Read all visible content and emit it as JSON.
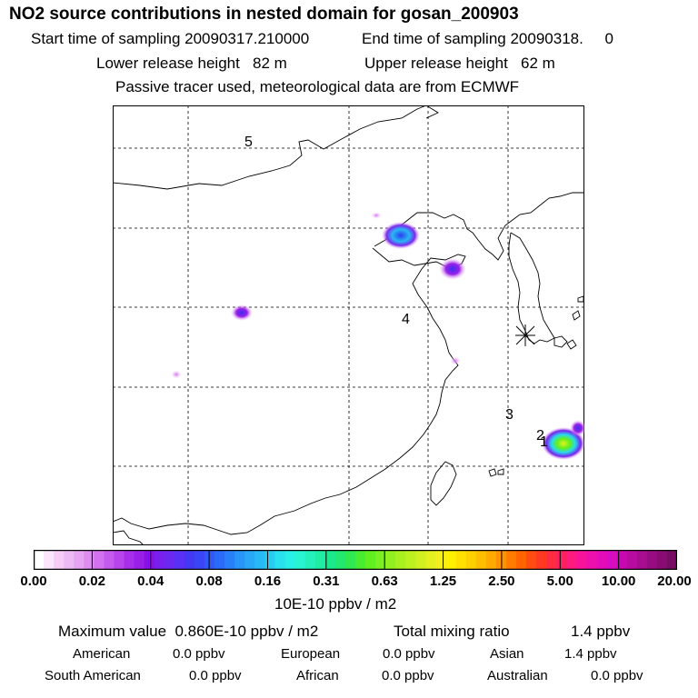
{
  "header": {
    "title": "NO2 source contributions in nested domain for gosan_200903",
    "start": "Start time of sampling 20090317.210000",
    "end": "End time of sampling 20090318.     0",
    "lower": "Lower release height   82 m",
    "upper": "Upper release height   62 m",
    "note": "Passive tracer used, meteorological data are from ECMWF"
  },
  "map": {
    "labels": [
      "5",
      "4",
      "3",
      "2",
      "1"
    ]
  },
  "colorbar": {
    "ticks": [
      "0.00",
      "0.02",
      "0.04",
      "0.08",
      "0.16",
      "0.31",
      "0.63",
      "1.25",
      "2.50",
      "5.00",
      "10.00",
      "20.00"
    ],
    "colors": [
      "#ffffff",
      "#fbe6fc",
      "#f5cdf7",
      "#eebaf5",
      "#e6a5f2",
      "#dd8cf0",
      "#d272ee",
      "#c55aee",
      "#b844ee",
      "#a82ee9",
      "#9a1fe8",
      "#8a10e8",
      "#7a20ee",
      "#6a28f0",
      "#5a30f4",
      "#4438f4",
      "#3a46f6",
      "#3158f8",
      "#2a6cf8",
      "#2880f8",
      "#2896f8",
      "#28a8f6",
      "#28baf4",
      "#28ccf2",
      "#28e0ee",
      "#28f0e6",
      "#28f4d2",
      "#24f0bc",
      "#20eca4",
      "#1ce88c",
      "#20e870",
      "#30e850",
      "#48ec30",
      "#60f020",
      "#7af020",
      "#92f020",
      "#a8f020",
      "#bcf020",
      "#d0f020",
      "#e4f020",
      "#f4f020",
      "#fff000",
      "#ffe000",
      "#ffd000",
      "#ffbe00",
      "#ffaa00",
      "#ff9400",
      "#ff7c00",
      "#ff6400",
      "#ff4c10",
      "#ff3a20",
      "#ff2c40",
      "#ff2060",
      "#ff1a80",
      "#f8149a",
      "#ee10ac",
      "#e40cb8",
      "#d80cc0",
      "#c808b0",
      "#b80ca0",
      "#a80c90",
      "#980c82",
      "#880c72",
      "#780c64"
    ],
    "unit": "10E-10 ppbv / m2"
  },
  "summary": {
    "max": "Maximum value  0.860E-10 ppbv / m2",
    "total_label": "Total mixing ratio",
    "total_value": "1.4 ppbv",
    "regions": [
      {
        "name": "American",
        "value": "0.0 ppbv"
      },
      {
        "name": "European",
        "value": "0.0 ppbv"
      },
      {
        "name": "Asian",
        "value": "1.4 ppbv"
      },
      {
        "name": "South American",
        "value": "0.0 ppbv"
      },
      {
        "name": "African",
        "value": "0.0 ppbv"
      },
      {
        "name": "Australian",
        "value": "0.0 ppbv"
      }
    ]
  }
}
